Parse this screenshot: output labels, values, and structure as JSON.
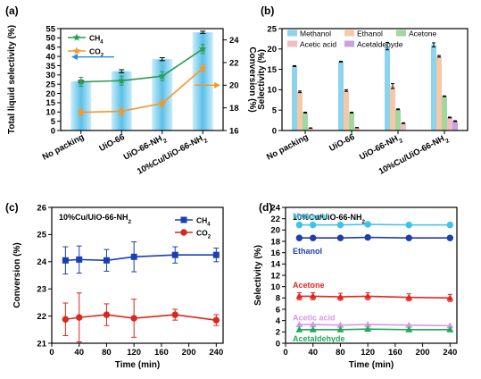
{
  "colors": {
    "ch4": "#1a3fb3",
    "co2": "#d8281e",
    "panel_a_ch4": "#2e9b55",
    "panel_a_co2": "#f5962b",
    "bar_a": "#5bc0e8"
  },
  "chart_data": [
    {
      "panel": "(a)",
      "type": "bar+line",
      "categories": [
        "No packing",
        "UiO-66",
        "UiO-66-NH2",
        "10%Cu/UiO-66-NH2"
      ],
      "categories_display": [
        "No packing",
        "UiO-66",
        "UiO-66-NH₂",
        "10%Cu/UiO-66-NH₂"
      ],
      "ylabel": "Total liquid selectivity (%)",
      "ylim": [
        0,
        55
      ],
      "yticks": [
        0,
        5,
        10,
        15,
        20,
        25,
        30,
        35,
        40,
        45,
        50,
        55
      ],
      "y2label": "Conversion (%)",
      "y2lim": [
        16,
        25
      ],
      "y2ticks": [
        16,
        18,
        20,
        22,
        24
      ],
      "bars": {
        "values": [
          26.5,
          32,
          38.5,
          53
        ],
        "errors": [
          0.6,
          0.8,
          0.8,
          0.6
        ]
      },
      "series": [
        {
          "name": "CH₄",
          "values": [
            20.3,
            20.4,
            20.8,
            23.2
          ],
          "errors": [
            0.4,
            0.4,
            0.4,
            0.4
          ]
        },
        {
          "name": "CO₂",
          "values": [
            17.6,
            17.7,
            18.4,
            21.5
          ],
          "errors": [
            0.3,
            0.4,
            0.3,
            0.3
          ]
        }
      ]
    },
    {
      "panel": "(b)",
      "type": "bar",
      "categories": [
        "No packing",
        "UiO-66",
        "UiO-66-NH2",
        "10%Cu/UiO-66-NH2"
      ],
      "categories_display": [
        "No packing",
        "UiO-66",
        "UiO-66-NH₂",
        "10%Cu/UiO-66-NH₂"
      ],
      "ylabel": "Selectivity (%)",
      "ylim": [
        0,
        25
      ],
      "yticks": [
        0,
        5,
        10,
        15,
        20,
        25
      ],
      "series": [
        {
          "name": "Methanol",
          "color": "#8cd3ee",
          "values": [
            15.8,
            16.9,
            20.7,
            21.0
          ],
          "errors": [
            0.1,
            0.1,
            0.9,
            0.5
          ]
        },
        {
          "name": "Ethanol",
          "color": "#f7c8a8",
          "values": [
            9.5,
            9.8,
            10.9,
            18.2
          ],
          "errors": [
            0.2,
            0.2,
            0.6,
            0.2
          ]
        },
        {
          "name": "Acetone",
          "color": "#9fd8a0",
          "values": [
            4.4,
            4.4,
            5.2,
            8.4
          ],
          "errors": [
            0.1,
            0.1,
            0.1,
            0.1
          ]
        },
        {
          "name": "Acetic acid",
          "color": "#f4bcc4",
          "values": [
            0.6,
            0.7,
            1.8,
            3.2
          ],
          "errors": [
            0.05,
            0.05,
            0.1,
            0.1
          ]
        },
        {
          "name": "Acetaldehyde",
          "color": "#c6a4df",
          "values": [
            0,
            0,
            0,
            2.3
          ],
          "errors": [
            0,
            0,
            0,
            0.1
          ]
        }
      ]
    },
    {
      "panel": "(c)",
      "type": "line",
      "annotation": "10%Cu/UiO-66-NH₂",
      "xlabel": "Time (min)",
      "ylabel": "Conversion (%)",
      "xlim": [
        0,
        250
      ],
      "xticks": [
        0,
        40,
        80,
        120,
        160,
        200,
        240
      ],
      "ylim": [
        21,
        26
      ],
      "yticks": [
        21,
        22,
        23,
        24,
        25,
        26
      ],
      "x": [
        20,
        40,
        80,
        120,
        180,
        240
      ],
      "series": [
        {
          "name": "CH₄",
          "values": [
            24.05,
            24.08,
            24.05,
            24.18,
            24.25,
            24.25
          ],
          "errors": [
            0.5,
            0.5,
            0.4,
            0.55,
            0.3,
            0.25
          ]
        },
        {
          "name": "CO₂",
          "values": [
            21.88,
            21.95,
            22.05,
            21.92,
            22.05,
            21.85
          ],
          "errors": [
            0.6,
            0.9,
            0.4,
            0.7,
            0.2,
            0.2
          ]
        }
      ]
    },
    {
      "panel": "(d)",
      "type": "line",
      "annotation": "10%Cu/UiO-66-NH₂",
      "xlabel": "Time (min)",
      "ylabel": "Selectivity (%)",
      "xlim": [
        0,
        250
      ],
      "xticks": [
        0,
        40,
        80,
        120,
        160,
        200,
        240
      ],
      "ylim": [
        0,
        24
      ],
      "yticks": [
        0,
        2,
        4,
        6,
        8,
        10,
        12,
        14,
        16,
        18,
        20,
        22,
        24
      ],
      "x": [
        20,
        40,
        80,
        120,
        180,
        240
      ],
      "series": [
        {
          "name": "Methanol",
          "color": "#3cc3e8",
          "values": [
            20.9,
            20.9,
            20.9,
            21.0,
            20.9,
            20.9
          ]
        },
        {
          "name": "Ethanol",
          "color": "#1f3fa8",
          "values": [
            18.6,
            18.6,
            18.6,
            18.7,
            18.6,
            18.6
          ]
        },
        {
          "name": "Acetone",
          "color": "#e0261e",
          "values": [
            8.3,
            8.3,
            8.2,
            8.3,
            8.1,
            8.0
          ]
        },
        {
          "name": "Acetic acid",
          "color": "#d29ae6",
          "values": [
            3.3,
            3.3,
            3.2,
            3.3,
            3.2,
            3.1
          ]
        },
        {
          "name": "Acetaldehyde",
          "color": "#1faa5a",
          "values": [
            2.4,
            2.4,
            2.4,
            2.5,
            2.4,
            2.4
          ]
        }
      ]
    }
  ]
}
